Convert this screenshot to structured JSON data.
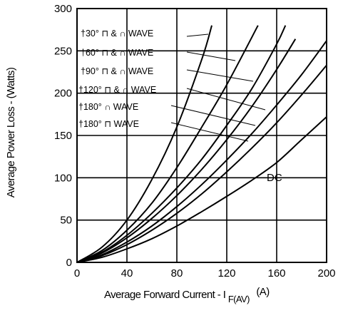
{
  "chart_data": {
    "type": "line",
    "xlabel": "Average Forward Current - I",
    "xlabel_sub": "F(AV)",
    "xlabel_unit": "(A)",
    "ylabel": "Average Power Loss - (Watts)",
    "xlim": [
      0,
      200
    ],
    "ylim": [
      0,
      300
    ],
    "xticks": [
      "0",
      "40",
      "80",
      "120",
      "160",
      "200"
    ],
    "yticks": [
      "0",
      "50",
      "100",
      "150",
      "200",
      "250",
      "300"
    ],
    "grid": true,
    "series": [
      {
        "name": "†30° ⊓ & ∩ WAVE",
        "x": [
          0,
          20,
          40,
          60,
          80,
          100,
          108
        ],
        "y": [
          0,
          18,
          50,
          98,
          160,
          240,
          280
        ]
      },
      {
        "name": "†60° ⊓ & ∩ WAVE",
        "x": [
          0,
          20,
          40,
          60,
          80,
          100,
          120,
          145
        ],
        "y": [
          0,
          14,
          38,
          70,
          112,
          160,
          210,
          280
        ]
      },
      {
        "name": "†90° ⊓ & ∩ WAVE",
        "x": [
          0,
          20,
          40,
          60,
          80,
          100,
          120,
          140,
          160,
          167
        ],
        "y": [
          0,
          12,
          32,
          58,
          88,
          122,
          162,
          205,
          258,
          280
        ]
      },
      {
        "name": "†120° ⊓ & ∩ WAVE",
        "x": [
          0,
          20,
          40,
          60,
          80,
          100,
          120,
          140,
          160,
          175
        ],
        "y": [
          0,
          11,
          29,
          52,
          79,
          110,
          145,
          184,
          228,
          264
        ]
      },
      {
        "name": "†180° ∩ WAVE",
        "x": [
          0,
          20,
          40,
          60,
          80,
          100,
          120,
          140,
          160,
          180,
          200
        ],
        "y": [
          0,
          9,
          24,
          43,
          66,
          92,
          121,
          152,
          186,
          222,
          262
        ]
      },
      {
        "name": "†180° ⊓ WAVE",
        "x": [
          0,
          20,
          40,
          60,
          80,
          100,
          120,
          140,
          160,
          180,
          200
        ],
        "y": [
          0,
          8,
          21,
          38,
          58,
          81,
          107,
          135,
          165,
          198,
          233
        ]
      },
      {
        "name": "DC",
        "x": [
          0,
          20,
          40,
          60,
          80,
          100,
          120,
          140,
          160,
          180,
          200
        ],
        "y": [
          0,
          6,
          16,
          28,
          43,
          60,
          78,
          97,
          118,
          145,
          172
        ]
      }
    ],
    "legend_labels": [
      {
        "angle": "†30°",
        "shape": "⊓ & ∩",
        "wave": "WAVE"
      },
      {
        "angle": "†60°",
        "shape": "⊓ & ∩",
        "wave": "WAVE"
      },
      {
        "angle": "†90°",
        "shape": "⊓ & ∩",
        "wave": "WAVE"
      },
      {
        "angle": "†120°",
        "shape": "⊓ & ∩",
        "wave": "WAVE"
      },
      {
        "angle": "†180°",
        "shape": "∩",
        "wave": "WAVE"
      },
      {
        "angle": "†180°",
        "shape": "⊓",
        "wave": "WAVE"
      }
    ],
    "annotation": "DC"
  }
}
